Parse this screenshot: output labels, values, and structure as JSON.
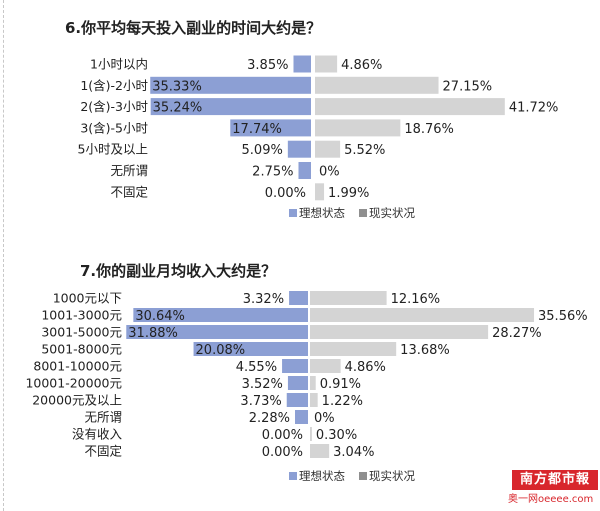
{
  "chart_data": [
    {
      "type": "bar",
      "orientation": "diverging-horizontal",
      "title": "6.你平均每天投入副业的时间大约是？",
      "categories": [
        "1小时以内",
        "1(含)-2小时",
        "2(含)-3小时",
        "3(含)-5小时",
        "5小时及以上",
        "无所谓",
        "不固定"
      ],
      "series": [
        {
          "name": "理想状态",
          "values": [
            3.85,
            35.33,
            35.24,
            17.74,
            5.09,
            2.75,
            0.0
          ],
          "labels": [
            "3.85%",
            "35.33%",
            "35.24%",
            "17.74%",
            "5.09%",
            "2.75%",
            "0.00%"
          ],
          "color": "#8c9fd4"
        },
        {
          "name": "现实状况",
          "values": [
            4.86,
            27.15,
            41.72,
            18.76,
            5.52,
            0.0,
            1.99
          ],
          "labels": [
            "4.86%",
            "27.15%",
            "41.72%",
            "18.76%",
            "5.52%",
            "0%",
            "1.99%"
          ],
          "color": "#d4d4d4"
        }
      ],
      "legend": "bottom"
    },
    {
      "type": "bar",
      "orientation": "diverging-horizontal",
      "title": "7.你的副业月均收入大约是？",
      "categories": [
        "1000元以下",
        "1001-3000元",
        "3001-5000元",
        "5001-8000元",
        "8001-10000元",
        "10001-20000元",
        "20000元及以上",
        "无所谓",
        "没有收入",
        "不固定"
      ],
      "series": [
        {
          "name": "理想状态",
          "values": [
            3.32,
            30.64,
            31.88,
            20.08,
            4.55,
            3.52,
            3.73,
            2.28,
            0.0,
            0.0
          ],
          "labels": [
            "3.32%",
            "30.64%",
            "31.88%",
            "20.08%",
            "4.55%",
            "3.52%",
            "3.73%",
            "2.28%",
            "0.00%",
            "0.00%"
          ],
          "color": "#8c9fd4"
        },
        {
          "name": "现实状况",
          "values": [
            12.16,
            35.56,
            28.27,
            13.68,
            4.86,
            0.91,
            1.22,
            0.0,
            0.3,
            3.04
          ],
          "labels": [
            "12.16%",
            "35.56%",
            "28.27%",
            "13.68%",
            "4.86%",
            "0.91%",
            "1.22%",
            "0%",
            "0.30%",
            "3.04%"
          ],
          "color": "#d4d4d4"
        }
      ],
      "legend": "bottom"
    }
  ],
  "watermark": {
    "brand": "南方都市報",
    "site": "奥一网oeeee.com"
  }
}
